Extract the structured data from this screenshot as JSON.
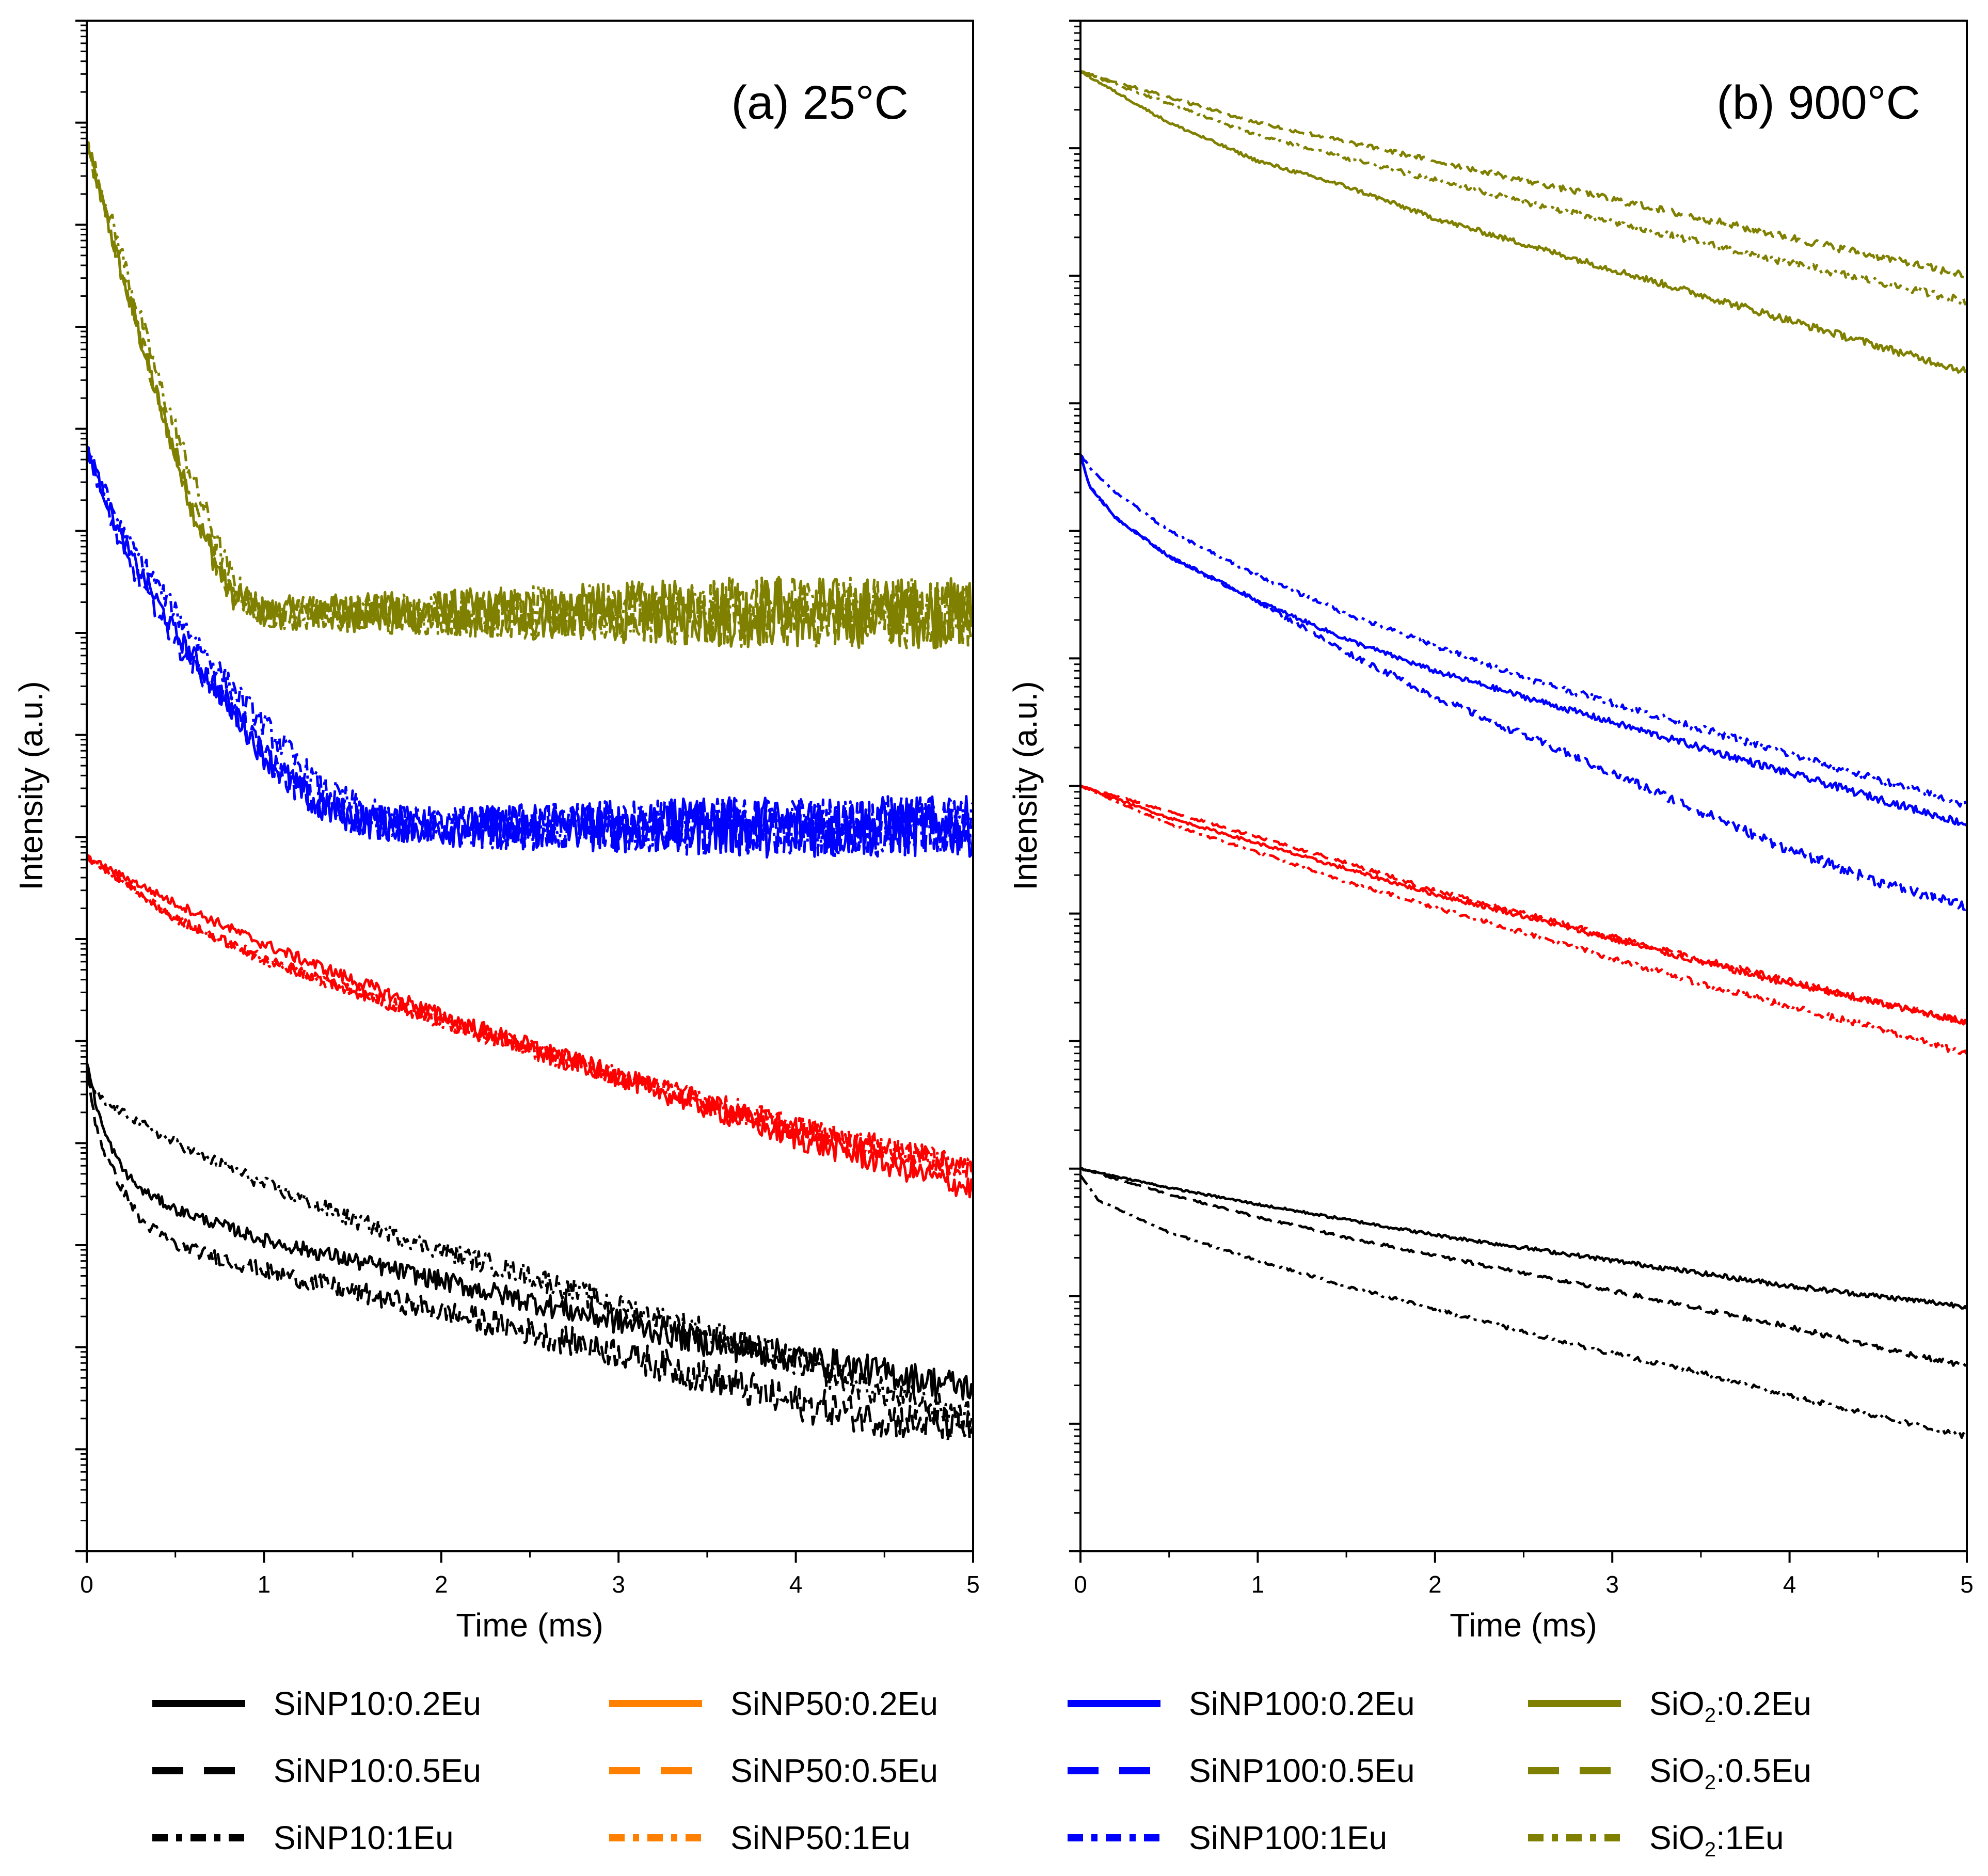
{
  "figure": {
    "ylabel": "Intensity (a.u.)",
    "xlabel": "Time (ms)",
    "colors": {
      "SiNP10": "#000000",
      "SiNP50": "#ff0000",
      "SiNP100": "#0000ff",
      "SiO2": "#808000",
      "legend_SiNP50": "#ff8000"
    },
    "legend": [
      {
        "prefix": "SiNP10:",
        "base": "",
        "sub": "",
        "suffix": "0.2Eu",
        "family": "SiNP10",
        "style": "solid",
        "full": "SiNP10:0.2Eu"
      },
      {
        "prefix": "SiNP10:",
        "base": "",
        "sub": "",
        "suffix": "0.5Eu",
        "family": "SiNP10",
        "style": "dash",
        "full": "SiNP10:0.5Eu"
      },
      {
        "prefix": "SiNP10:",
        "base": "",
        "sub": "",
        "suffix": "1Eu",
        "family": "SiNP10",
        "style": "dashdot",
        "full": "SiNP10:1Eu"
      },
      {
        "prefix": "SiNP50:",
        "base": "",
        "sub": "",
        "suffix": "0.2Eu",
        "family": "legend_SiNP50",
        "style": "solid",
        "full": "SiNP50:0.2Eu"
      },
      {
        "prefix": "SiNP50:",
        "base": "",
        "sub": "",
        "suffix": "0.5Eu",
        "family": "legend_SiNP50",
        "style": "dash",
        "full": "SiNP50:0.5Eu"
      },
      {
        "prefix": "SiNP50:",
        "base": "",
        "sub": "",
        "suffix": "1Eu",
        "family": "legend_SiNP50",
        "style": "dashdot",
        "full": "SiNP50:1Eu"
      },
      {
        "prefix": "SiNP100:",
        "base": "",
        "sub": "",
        "suffix": "0.2Eu",
        "family": "SiNP100",
        "style": "solid",
        "full": "SiNP100:0.2Eu"
      },
      {
        "prefix": "SiNP100:",
        "base": "",
        "sub": "",
        "suffix": "0.5Eu",
        "family": "SiNP100",
        "style": "dash",
        "full": "SiNP100:0.5Eu"
      },
      {
        "prefix": "SiNP100:",
        "base": "",
        "sub": "",
        "suffix": "1Eu",
        "family": "SiNP100",
        "style": "dashdot",
        "full": "SiNP100:1Eu"
      },
      {
        "prefix": "",
        "base": "SiO",
        "sub": "2",
        "suffix": ":0.2Eu",
        "family": "SiO2",
        "style": "solid",
        "full": "SiO2:0.2Eu"
      },
      {
        "prefix": "",
        "base": "SiO",
        "sub": "2",
        "suffix": ":0.5Eu",
        "family": "SiO2",
        "style": "dash",
        "full": "SiO2:0.5Eu"
      },
      {
        "prefix": "",
        "base": "SiO",
        "sub": "2",
        "suffix": ":1Eu",
        "family": "SiO2",
        "style": "dashdot",
        "full": "SiO2:1Eu"
      }
    ]
  },
  "chart_data": [
    {
      "type": "line",
      "title": "(a) 25°C",
      "xlabel": "Time (ms)",
      "ylabel": "Intensity (a.u.)",
      "xlim": [
        0,
        5
      ],
      "xticks": [
        0,
        1,
        2,
        3,
        4,
        5
      ],
      "yscale": "log",
      "ylim_decades": [
        0,
        15
      ],
      "ytick_labels": "none",
      "series": [
        {
          "name": "SiO2:0.2Eu",
          "family": "SiO2",
          "style": "solid",
          "x": [
            0,
            0.2,
            0.4,
            0.6,
            0.8,
            0.9,
            1.0,
            1.3,
            5.0
          ],
          "y": [
            13.8,
            12.5,
            11.3,
            10.2,
            9.4,
            9.3,
            9.2,
            9.2,
            9.2
          ],
          "noise": 0.35
        },
        {
          "name": "SiO2:0.5Eu",
          "family": "SiO2",
          "style": "dash",
          "x": [
            0,
            0.2,
            0.4,
            0.6,
            0.8,
            0.9,
            1.0,
            1.3,
            5.0
          ],
          "y": [
            13.8,
            12.5,
            11.3,
            10.2,
            9.4,
            9.3,
            9.2,
            9.2,
            9.2
          ],
          "noise": 0.35
        },
        {
          "name": "SiO2:1Eu",
          "family": "SiO2",
          "style": "dashdot",
          "x": [
            0,
            0.2,
            0.4,
            0.6,
            0.8,
            0.9,
            1.0,
            1.3,
            5.0
          ],
          "y": [
            13.8,
            12.7,
            11.5,
            10.5,
            9.6,
            9.3,
            9.2,
            9.2,
            9.2
          ],
          "noise": 0.35
        },
        {
          "name": "SiNP100:0.2Eu",
          "family": "SiNP100",
          "style": "solid",
          "x": [
            0,
            0.2,
            0.5,
            0.8,
            1.0,
            1.3,
            1.6,
            2.0,
            5.0
          ],
          "y": [
            10.8,
            9.9,
            9.0,
            8.3,
            7.8,
            7.3,
            7.15,
            7.1,
            7.1
          ],
          "noise": 0.3
        },
        {
          "name": "SiNP100:0.5Eu",
          "family": "SiNP100",
          "style": "dash",
          "x": [
            0,
            0.2,
            0.5,
            0.8,
            1.0,
            1.3,
            1.6,
            2.0,
            5.0
          ],
          "y": [
            10.8,
            9.8,
            8.9,
            8.3,
            7.8,
            7.3,
            7.15,
            7.1,
            7.1
          ],
          "noise": 0.3
        },
        {
          "name": "SiNP100:1Eu",
          "family": "SiNP100",
          "style": "dashdot",
          "x": [
            0,
            0.2,
            0.5,
            0.8,
            1.0,
            1.3,
            1.6,
            2.0,
            5.0
          ],
          "y": [
            10.8,
            10.0,
            9.2,
            8.5,
            8.1,
            7.5,
            7.2,
            7.1,
            7.1
          ],
          "noise": 0.3
        },
        {
          "name": "SiNP50:0.2Eu",
          "family": "SiNP50",
          "style": "solid",
          "x": [
            0,
            0.5,
            1.0,
            1.5,
            2.0,
            2.5,
            3.0,
            3.5,
            4.0,
            4.5,
            5.0
          ],
          "y": [
            6.8,
            6.35,
            5.95,
            5.6,
            5.25,
            4.95,
            4.65,
            4.35,
            4.05,
            3.8,
            3.55
          ],
          "noise": 0.12
        },
        {
          "name": "SiNP50:0.5Eu",
          "family": "SiNP50",
          "style": "dash",
          "x": [
            0,
            0.5,
            1.0,
            1.5,
            2.0,
            2.5,
            3.0,
            3.5,
            4.0,
            4.5,
            5.0
          ],
          "y": [
            6.8,
            6.2,
            5.8,
            5.5,
            5.2,
            4.92,
            4.65,
            4.4,
            4.15,
            3.95,
            3.75
          ],
          "noise": 0.12
        },
        {
          "name": "SiNP50:1Eu",
          "family": "SiNP50",
          "style": "dashdot",
          "x": [
            0,
            0.5,
            1.0,
            1.5,
            2.0,
            2.5,
            3.0,
            3.5,
            4.0,
            4.5,
            5.0
          ],
          "y": [
            6.8,
            6.2,
            5.8,
            5.5,
            5.2,
            4.92,
            4.65,
            4.4,
            4.15,
            3.95,
            3.75
          ],
          "noise": 0.12
        },
        {
          "name": "SiNP10:0.2Eu",
          "family": "SiNP10",
          "style": "solid",
          "x": [
            0,
            0.05,
            0.1,
            0.2,
            0.3,
            0.5,
            1.0,
            1.5,
            2.0,
            2.5,
            3.0,
            3.5,
            4.0,
            4.5,
            5.0
          ],
          "y": [
            4.8,
            4.4,
            4.1,
            3.75,
            3.55,
            3.35,
            3.05,
            2.85,
            2.65,
            2.45,
            2.25,
            2.05,
            1.9,
            1.75,
            1.6
          ],
          "noise": 0.15
        },
        {
          "name": "SiNP10:0.5Eu",
          "family": "SiNP10",
          "style": "dash",
          "x": [
            0,
            0.05,
            0.1,
            0.2,
            0.3,
            0.5,
            1.0,
            1.5,
            2.0,
            2.5,
            3.0,
            3.5,
            4.0,
            4.5,
            5.0
          ],
          "y": [
            4.7,
            4.2,
            3.9,
            3.55,
            3.25,
            3.0,
            2.75,
            2.55,
            2.35,
            2.15,
            1.95,
            1.7,
            1.45,
            1.3,
            1.2
          ],
          "noise": 0.18
        },
        {
          "name": "SiNP10:1Eu",
          "family": "SiNP10",
          "style": "dashdot",
          "x": [
            0,
            0.1,
            0.3,
            0.5,
            1.0,
            1.5,
            2.0,
            2.5,
            3.0,
            3.5,
            4.0,
            4.5,
            5.0
          ],
          "y": [
            4.6,
            4.4,
            4.2,
            4.0,
            3.6,
            3.25,
            2.95,
            2.7,
            2.4,
            2.15,
            1.85,
            1.55,
            1.3
          ],
          "noise": 0.15
        }
      ]
    },
    {
      "type": "line",
      "title": "(b) 900°C",
      "xlabel": "Time (ms)",
      "ylabel": "Intensity (a.u.)",
      "xlim": [
        0,
        5
      ],
      "xticks": [
        0,
        1,
        2,
        3,
        4,
        5
      ],
      "yscale": "log",
      "ylim_decades": [
        0,
        12
      ],
      "ytick_labels": "none",
      "series": [
        {
          "name": "SiO2:0.2Eu",
          "family": "SiO2",
          "style": "solid",
          "x": [
            0,
            0.5,
            1.0,
            1.5,
            2.0,
            2.5,
            3.0,
            3.5,
            4.0,
            4.5,
            5.0
          ],
          "y": [
            11.6,
            11.2,
            10.9,
            10.7,
            10.45,
            10.25,
            10.05,
            9.85,
            9.65,
            9.45,
            9.25
          ],
          "noise": 0.03
        },
        {
          "name": "SiO2:0.5Eu",
          "family": "SiO2",
          "style": "dash",
          "x": [
            0,
            0.5,
            1.0,
            1.5,
            2.0,
            2.5,
            3.0,
            3.5,
            4.0,
            4.5,
            5.0
          ],
          "y": [
            11.6,
            11.4,
            11.2,
            11.05,
            10.9,
            10.75,
            10.6,
            10.45,
            10.3,
            10.15,
            10.0
          ],
          "noise": 0.03
        },
        {
          "name": "SiO2:1Eu",
          "family": "SiO2",
          "style": "dashdot",
          "x": [
            0,
            0.5,
            1.0,
            1.5,
            2.0,
            2.5,
            3.0,
            3.5,
            4.0,
            4.5,
            5.0
          ],
          "y": [
            11.6,
            11.35,
            11.1,
            10.92,
            10.75,
            10.58,
            10.42,
            10.26,
            10.1,
            9.95,
            9.8
          ],
          "noise": 0.03
        },
        {
          "name": "SiNP100:0.2Eu",
          "family": "SiNP100",
          "style": "solid",
          "x": [
            0,
            0.05,
            0.2,
            0.5,
            1.0,
            1.5,
            2.0,
            2.5,
            3.0,
            3.5,
            4.0,
            4.5,
            5.0
          ],
          "y": [
            8.6,
            8.35,
            8.1,
            7.8,
            7.45,
            7.15,
            6.9,
            6.7,
            6.5,
            6.3,
            6.1,
            5.9,
            5.7
          ],
          "noise": 0.03
        },
        {
          "name": "SiNP100:0.5Eu",
          "family": "SiNP100",
          "style": "dash",
          "x": [
            0,
            0.05,
            0.2,
            0.5,
            1.0,
            1.5,
            2.0,
            2.5,
            3.0,
            3.5,
            4.0,
            4.5,
            5.0
          ],
          "y": [
            8.6,
            8.35,
            8.1,
            7.8,
            7.45,
            7.05,
            6.7,
            6.4,
            6.1,
            5.8,
            5.5,
            5.25,
            5.05
          ],
          "noise": 0.04
        },
        {
          "name": "SiNP100:1Eu",
          "family": "SiNP100",
          "style": "dashdot",
          "x": [
            0,
            0.05,
            0.2,
            0.5,
            1.0,
            1.5,
            2.0,
            2.5,
            3.0,
            3.5,
            4.0,
            4.5,
            5.0
          ],
          "y": [
            8.6,
            8.5,
            8.3,
            8.0,
            7.65,
            7.35,
            7.1,
            6.85,
            6.65,
            6.45,
            6.25,
            6.05,
            5.85
          ],
          "noise": 0.03
        },
        {
          "name": "SiNP50:0.2Eu",
          "family": "SiNP50",
          "style": "solid",
          "x": [
            0,
            0.5,
            1.0,
            1.5,
            2.0,
            2.5,
            3.0,
            3.5,
            4.0,
            4.5,
            5.0
          ],
          "y": [
            6.0,
            5.75,
            5.55,
            5.35,
            5.15,
            4.98,
            4.8,
            4.62,
            4.45,
            4.3,
            4.15
          ],
          "noise": 0.025
        },
        {
          "name": "SiNP50:0.5Eu",
          "family": "SiNP50",
          "style": "dash",
          "x": [
            0,
            0.5,
            1.0,
            1.5,
            2.0,
            2.5,
            3.0,
            3.5,
            4.0,
            4.5,
            5.0
          ],
          "y": [
            6.0,
            5.8,
            5.6,
            5.4,
            5.18,
            5.0,
            4.82,
            4.64,
            4.47,
            4.3,
            4.15
          ],
          "noise": 0.025
        },
        {
          "name": "SiNP50:1Eu",
          "family": "SiNP50",
          "style": "dashdot",
          "x": [
            0,
            0.5,
            1.0,
            1.5,
            2.0,
            2.5,
            3.0,
            3.5,
            4.0,
            4.5,
            5.0
          ],
          "y": [
            6.0,
            5.7,
            5.48,
            5.25,
            5.05,
            4.85,
            4.65,
            4.45,
            4.27,
            4.1,
            3.9
          ],
          "noise": 0.025
        },
        {
          "name": "SiNP10:0.2Eu",
          "family": "SiNP10",
          "style": "solid",
          "x": [
            0,
            0.5,
            1.0,
            1.5,
            2.0,
            2.5,
            3.0,
            3.5,
            4.0,
            4.5,
            5.0
          ],
          "y": [
            3.0,
            2.85,
            2.72,
            2.6,
            2.48,
            2.38,
            2.28,
            2.18,
            2.08,
            2.0,
            1.92
          ],
          "noise": 0.02
        },
        {
          "name": "SiNP10:0.5Eu",
          "family": "SiNP10",
          "style": "dash",
          "x": [
            0,
            0.5,
            1.0,
            1.5,
            2.0,
            2.5,
            3.0,
            3.5,
            4.0,
            4.5,
            5.0
          ],
          "y": [
            3.0,
            2.8,
            2.62,
            2.46,
            2.32,
            2.18,
            2.04,
            1.9,
            1.76,
            1.6,
            1.45
          ],
          "noise": 0.02
        },
        {
          "name": "SiNP10:1Eu",
          "family": "SiNP10",
          "style": "dashdot",
          "x": [
            0,
            0.1,
            0.5,
            1.0,
            1.5,
            2.0,
            2.5,
            3.0,
            3.5,
            4.0,
            4.5,
            5.0
          ],
          "y": [
            2.95,
            2.75,
            2.5,
            2.28,
            2.08,
            1.9,
            1.72,
            1.55,
            1.4,
            1.22,
            1.06,
            0.9
          ],
          "noise": 0.02
        }
      ]
    }
  ]
}
